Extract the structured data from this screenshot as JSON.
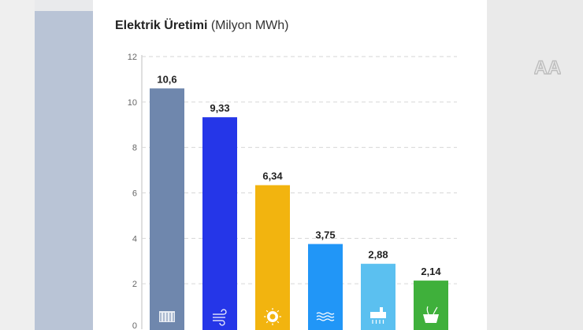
{
  "chart_data": {
    "type": "bar",
    "title": "Elektrik Üretimi",
    "subtitle": "(Milyon MWh)",
    "categories": [
      "coal",
      "wind",
      "solar",
      "hydro",
      "natural-gas",
      "biomass"
    ],
    "values": [
      10.6,
      9.33,
      6.34,
      3.75,
      2.88,
      2.14
    ],
    "value_labels": [
      "10,6",
      "9,33",
      "6,34",
      "3,75",
      "2,88",
      "2,14"
    ],
    "yticks": [
      "0",
      "2",
      "4",
      "6",
      "8",
      "10",
      "12"
    ],
    "ylim": [
      0,
      12
    ],
    "grid": true,
    "legend": "none",
    "colors": [
      "#6f87ad",
      "#2536e8",
      "#f2b40f",
      "#2196f7",
      "#5bc0f0",
      "#3fb03b"
    ],
    "icons": [
      "coal-plant-icon",
      "wind-icon",
      "solar-icon",
      "water-icon",
      "gas-plant-icon",
      "biomass-icon"
    ]
  },
  "logo": {
    "text": "AA"
  }
}
